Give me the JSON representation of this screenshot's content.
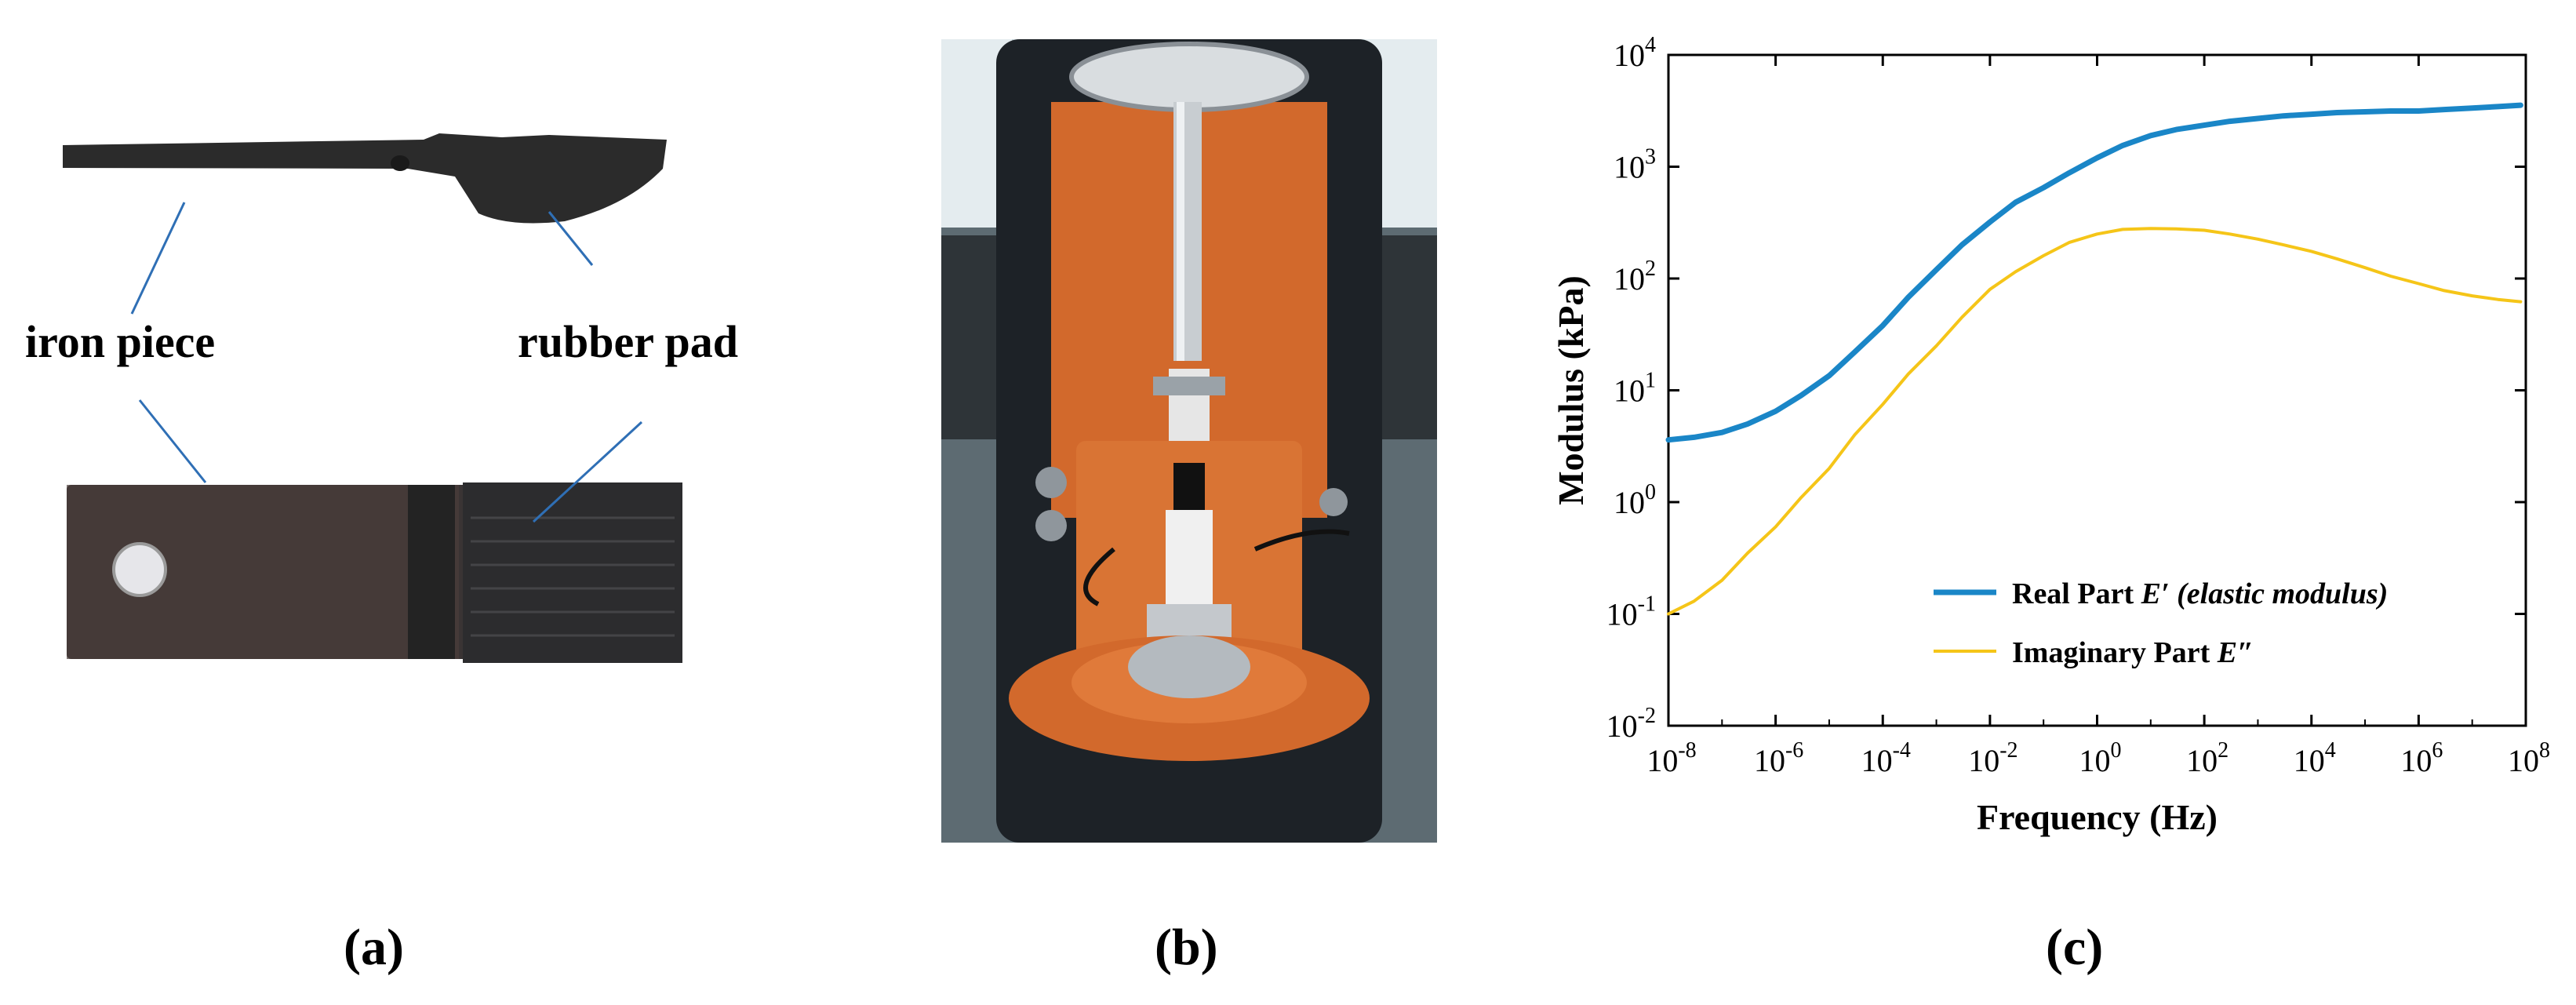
{
  "panel_a": {
    "label": "(a)",
    "annotations": {
      "iron": "iron piece",
      "rubber": "rubber pad"
    }
  },
  "panel_b": {
    "label": "(b)"
  },
  "panel_c": {
    "label": "(c)"
  },
  "chart_data": {
    "type": "line",
    "title": "",
    "xlabel": "Frequency (Hz)",
    "ylabel": "Modulus (kPa)",
    "x_scale": "log",
    "y_scale": "log",
    "xlim": [
      1e-08,
      100000000.0
    ],
    "ylim": [
      0.01,
      10000
    ],
    "x_ticks": [
      1e-08,
      1e-06,
      0.0001,
      0.01,
      1.0,
      100.0,
      10000.0,
      1000000.0,
      100000000.0
    ],
    "x_tick_labels": [
      [
        "10",
        "-8"
      ],
      [
        "10",
        "-6"
      ],
      [
        "10",
        "-4"
      ],
      [
        "10",
        "-2"
      ],
      [
        "10",
        "0"
      ],
      [
        "10",
        "2"
      ],
      [
        "10",
        "4"
      ],
      [
        "10",
        "6"
      ],
      [
        "10",
        "8"
      ]
    ],
    "y_ticks": [
      0.01,
      0.1,
      1.0,
      10.0,
      100.0,
      1000.0,
      10000.0
    ],
    "y_tick_labels": [
      [
        "10",
        "-2"
      ],
      [
        "10",
        "-1"
      ],
      [
        "10",
        "0"
      ],
      [
        "10",
        "1"
      ],
      [
        "10",
        "2"
      ],
      [
        "10",
        "3"
      ],
      [
        "10",
        "4"
      ]
    ],
    "grid": false,
    "legend_position": "bottom-right",
    "series": [
      {
        "name_plain": "Real Part ",
        "name_italic": "E′ (elastic modulus)",
        "color": "#1a86c7",
        "x": [
          1e-08,
          3e-08,
          1e-07,
          3e-07,
          1e-06,
          3e-06,
          1e-05,
          3e-05,
          0.0001,
          0.0003,
          0.001,
          0.003,
          0.01,
          0.03,
          0.1,
          0.3,
          1.0,
          3.0,
          10.0,
          30.0,
          100.0,
          300.0,
          1000.0,
          3000.0,
          10000.0,
          30000.0,
          100000.0,
          300000.0,
          1000000.0,
          3000000.0,
          10000000.0,
          30000000.0,
          80000000.0
        ],
        "values": [
          3.6,
          3.8,
          4.2,
          5.0,
          6.5,
          9.0,
          13.5,
          22,
          38,
          68,
          120,
          200,
          320,
          480,
          650,
          880,
          1200,
          1550,
          1900,
          2150,
          2350,
          2550,
          2700,
          2850,
          2950,
          3050,
          3100,
          3150,
          3150,
          3250,
          3350,
          3450,
          3550
        ]
      },
      {
        "name_plain": "Imaginary Part ",
        "name_italic": "E″",
        "color": "#f5c518",
        "x": [
          1e-08,
          3e-08,
          1e-07,
          3e-07,
          1e-06,
          3e-06,
          1e-05,
          3e-05,
          0.0001,
          0.0003,
          0.001,
          0.003,
          0.01,
          0.03,
          0.1,
          0.3,
          1.0,
          3.0,
          10.0,
          30.0,
          100.0,
          300.0,
          1000.0,
          3000.0,
          10000.0,
          30000.0,
          100000.0,
          300000.0,
          1000000.0,
          3000000.0,
          10000000.0,
          30000000.0,
          80000000.0
        ],
        "values": [
          0.1,
          0.13,
          0.2,
          0.35,
          0.6,
          1.1,
          2.0,
          4.0,
          7.5,
          14,
          25,
          45,
          80,
          115,
          160,
          210,
          250,
          275,
          280,
          278,
          270,
          250,
          225,
          200,
          175,
          150,
          125,
          105,
          90,
          78,
          70,
          65,
          62
        ]
      }
    ]
  }
}
